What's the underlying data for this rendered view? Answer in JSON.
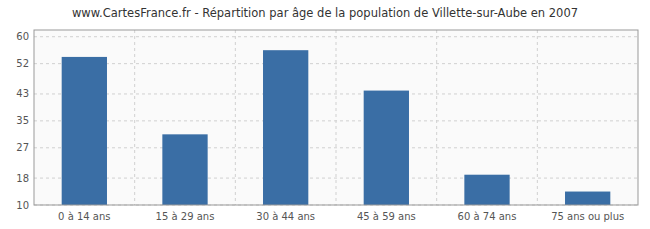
{
  "chart_data": {
    "type": "bar",
    "title": "www.CartesFrance.fr - Répartition par âge de la population de Villette-sur-Aube en 2007",
    "categories": [
      "0 à 14 ans",
      "15 à 29 ans",
      "30 à 44 ans",
      "45 à 59 ans",
      "60 à 74 ans",
      "75 ans ou plus"
    ],
    "values": [
      54,
      31,
      56,
      44,
      19,
      14
    ],
    "color": "#3a6ea5",
    "ylim": [
      10,
      62
    ],
    "yticks": [
      10,
      18,
      27,
      35,
      43,
      52,
      60
    ],
    "grid": true
  }
}
